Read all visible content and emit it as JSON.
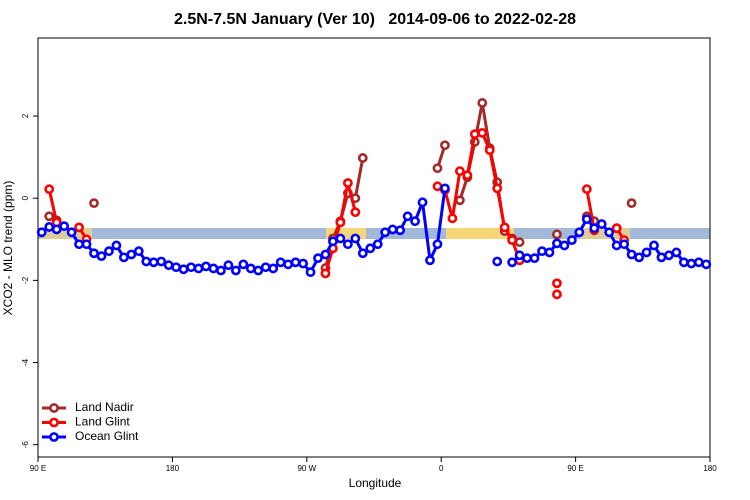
{
  "chart_data": {
    "type": "line",
    "title": "2.5N-7.5N January (Ver 10)   2014-09-06 to 2022-02-28",
    "x_label": "Longitude",
    "y_label": "XCO2 - MLO trend (ppm)",
    "xlim": [
      90,
      540
    ],
    "ylim": [
      -6.3,
      3.9
    ],
    "xticks": [
      {
        "value": 90,
        "label": "90 E"
      },
      {
        "value": 180,
        "label": "180"
      },
      {
        "value": 270,
        "label": "90 W"
      },
      {
        "value": 360,
        "label": "0"
      },
      {
        "value": 450,
        "label": "90 E"
      },
      {
        "value": 540,
        "label": "180"
      }
    ],
    "yticks": [
      -6,
      -4,
      -2,
      0,
      2
    ],
    "legend": "bottom-left",
    "series": [
      {
        "name": "Land Nadir",
        "color": "#a52a2a",
        "x": [
          97.5,
          102.5,
          107.5,
          127.5,
          132.5,
          282.5,
          287.5,
          292.5,
          297.5,
          302.5,
          307.5,
          312.5,
          357.5,
          362.5,
          367.5,
          372.5,
          377.5,
          382.5,
          387.5,
          392.5,
          397.5,
          402.5,
          407.5,
          412.5,
          417.5,
          437.5,
          442.5,
          457.5,
          462.5,
          467.5,
          477.5,
          482.5,
          487.5
        ],
        "values": [
          -0.44,
          -0.54,
          null,
          -0.12,
          null,
          -1.7,
          -0.98,
          -0.56,
          0.12,
          0,
          0.98,
          null,
          0.73,
          1.29,
          null,
          -0.05,
          0.51,
          1.37,
          2.32,
          1.22,
          0.39,
          -0.8,
          -0.98,
          -1.07,
          null,
          -0.88,
          null,
          -0.44,
          -0.56,
          null,
          -0.73,
          null,
          -0.12
        ]
      },
      {
        "name": "Land Glint",
        "color": "#ff0000",
        "x": [
          97.5,
          102.5,
          107.5,
          117.5,
          122.5,
          127.5,
          282.5,
          287.5,
          292.5,
          297.5,
          302.5,
          307.5,
          357.5,
          362.5,
          367.5,
          372.5,
          377.5,
          382.5,
          387.5,
          392.5,
          397.5,
          402.5,
          407.5,
          412.5,
          417.5,
          437.5,
          437.5,
          437.5,
          442.5,
          457.5,
          462.5,
          467.5,
          477.5,
          482.5
        ],
        "values": [
          0.22,
          -0.59,
          null,
          -0.71,
          -1.0,
          null,
          -1.83,
          -1.22,
          -0.59,
          0.37,
          -0.34,
          null,
          0.29,
          0.2,
          -0.49,
          0.66,
          0.56,
          1.56,
          1.59,
          1.17,
          0.24,
          -0.71,
          -1.02,
          -1.51,
          null,
          -2.07,
          null,
          -2.34,
          null,
          0.22,
          -0.78,
          null,
          -0.73,
          -1.02
        ]
      },
      {
        "name": "Ocean Glint",
        "color": "#0000ff",
        "x": [
          92.5,
          97.5,
          102.5,
          107.5,
          112.5,
          117.5,
          122.5,
          127.5,
          132.5,
          137.5,
          142.5,
          147.5,
          152.5,
          157.5,
          162.5,
          167.5,
          172.5,
          177.5,
          182.5,
          187.5,
          192.5,
          197.5,
          202.5,
          207.5,
          212.5,
          217.5,
          222.5,
          227.5,
          232.5,
          237.5,
          242.5,
          247.5,
          252.5,
          257.5,
          262.5,
          267.5,
          272.5,
          277.5,
          282.5,
          287.5,
          292.5,
          297.5,
          302.5,
          307.5,
          312.5,
          317.5,
          322.5,
          327.5,
          332.5,
          337.5,
          342.5,
          347.5,
          352.5,
          357.5,
          362.5,
          367.5,
          397.5,
          402.5,
          407.5,
          412.5,
          417.5,
          422.5,
          427.5,
          432.5,
          437.5,
          442.5,
          447.5,
          452.5,
          457.5,
          462.5,
          467.5,
          472.5,
          477.5,
          482.5,
          487.5,
          492.5,
          497.5,
          502.5,
          507.5,
          512.5,
          517.5,
          522.5,
          527.5,
          532.5,
          537.5
        ],
        "values": [
          -0.83,
          -0.7,
          -0.76,
          -0.68,
          -0.83,
          -1.12,
          -1.12,
          -1.34,
          -1.41,
          -1.29,
          -1.15,
          -1.44,
          -1.37,
          -1.29,
          -1.54,
          -1.56,
          -1.54,
          -1.63,
          -1.68,
          -1.73,
          -1.68,
          -1.71,
          -1.66,
          -1.71,
          -1.76,
          -1.63,
          -1.76,
          -1.61,
          -1.71,
          -1.76,
          -1.68,
          -1.71,
          -1.56,
          -1.61,
          -1.56,
          -1.59,
          -1.8,
          -1.46,
          -1.37,
          -1.05,
          -0.98,
          -1.12,
          -0.98,
          -1.34,
          -1.22,
          -1.12,
          -0.83,
          -0.76,
          -0.78,
          -0.44,
          -0.56,
          -0.1,
          -1.51,
          -1.12,
          0.24,
          null,
          -1.54,
          null,
          -1.56,
          -1.39,
          -1.46,
          -1.46,
          -1.29,
          -1.32,
          -1.1,
          -1.15,
          -1.02,
          -0.83,
          -0.51,
          -0.73,
          -0.63,
          -0.83,
          -1.15,
          -1.12,
          -1.37,
          -1.44,
          -1.32,
          -1.15,
          -1.44,
          -1.39,
          -1.32,
          -1.56,
          -1.59,
          -1.56,
          -1.61
        ]
      }
    ]
  }
}
